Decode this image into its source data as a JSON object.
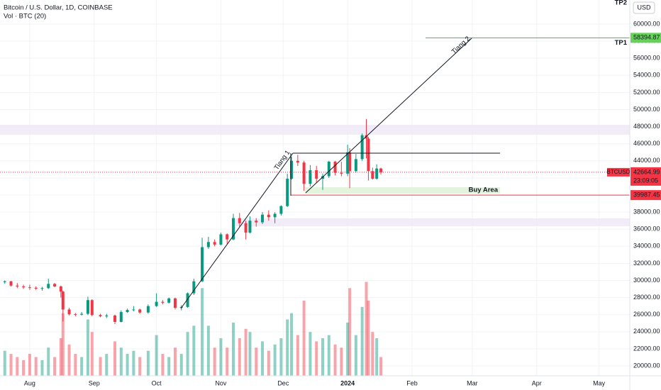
{
  "chart_data": {
    "type": "candlestick",
    "title": "Bitcoin / U.S. Dollar, 1D, COINBASE",
    "subtitle": "Vol · BTC (20)",
    "currency": "USD",
    "symbol": "BTCUSD",
    "last_price": {
      "value": 42664.99,
      "label": "42664.99"
    },
    "countdown": "23:09:05",
    "target": {
      "name": "TP1",
      "value": 58394.87,
      "label": "58394.87"
    },
    "target2": "TP2",
    "support": {
      "value": 39987.45,
      "label": "39987.45"
    },
    "buy_area": "Buy Area",
    "line_labels": [
      "Tiang 1",
      "Tiang 2"
    ],
    "up_color": "#089981",
    "down_color": "#f23645",
    "ylim": [
      18840,
      62820
    ],
    "yticks": [
      {
        "value": 20000,
        "label": "20000.00"
      },
      {
        "value": 22000,
        "label": "22000.00"
      },
      {
        "value": 24000,
        "label": "24000.00"
      },
      {
        "value": 26000,
        "label": "26000.00"
      },
      {
        "value": 28000,
        "label": "28000.00"
      },
      {
        "value": 30000,
        "label": "30000.00"
      },
      {
        "value": 32000,
        "label": "32000.00"
      },
      {
        "value": 34000,
        "label": "34000.00"
      },
      {
        "value": 36000,
        "label": "36000.00"
      },
      {
        "value": 38000,
        "label": "38000.00"
      },
      {
        "value": 40000,
        "label": "40000.00"
      },
      {
        "value": 42000,
        "label": "42000.00"
      },
      {
        "value": 44000,
        "label": "44000.00"
      },
      {
        "value": 46000,
        "label": "46000.00"
      },
      {
        "value": 48000,
        "label": "48000.00"
      },
      {
        "value": 50000,
        "label": "50000.00"
      },
      {
        "value": 52000,
        "label": "52000.00"
      },
      {
        "value": 54000,
        "label": "54000.00"
      },
      {
        "value": 56000,
        "label": "56000.00"
      },
      {
        "value": 58000,
        "label": "58000.00"
      },
      {
        "value": 60000,
        "label": "60000.00"
      }
    ],
    "y2lim": [
      0,
      120000
    ],
    "xlim": [
      -14.3,
      288.8
    ],
    "xticks": [
      {
        "value": 0,
        "label": "Aug"
      },
      {
        "value": 31,
        "label": "Sep"
      },
      {
        "value": 61,
        "label": "Oct"
      },
      {
        "value": 92,
        "label": "Nov"
      },
      {
        "value": 122,
        "label": "Dec"
      },
      {
        "value": 153,
        "label": "2024"
      },
      {
        "value": 184,
        "label": "Feb"
      },
      {
        "value": 213,
        "label": "Mar"
      },
      {
        "value": 244,
        "label": "Apr"
      },
      {
        "value": 274,
        "label": "May"
      }
    ],
    "grid": true,
    "candles": {
      "x": [
        -12,
        -9,
        -6,
        -3,
        0,
        3,
        6,
        9,
        12,
        15,
        16,
        19,
        22,
        25,
        28,
        30,
        34,
        37,
        41,
        44,
        47,
        50,
        53,
        57,
        61,
        64,
        67,
        70,
        73,
        76,
        79,
        83,
        86,
        89,
        92,
        95,
        98,
        101,
        104,
        106,
        109,
        112,
        115,
        118,
        121,
        124,
        126,
        129,
        132,
        135,
        138,
        141,
        144,
        147,
        150,
        153,
        154,
        157,
        160,
        162,
        163,
        165,
        167,
        169
      ],
      "open": [
        29800,
        29900,
        29400,
        29300,
        29200,
        29150,
        29050,
        29100,
        29600,
        29300,
        28700,
        26600,
        26050,
        26000,
        26100,
        27700,
        25950,
        25800,
        25900,
        25150,
        26300,
        26550,
        26600,
        26250,
        27000,
        27500,
        27400,
        27900,
        26800,
        26900,
        28500,
        29900,
        33900,
        34500,
        34200,
        35400,
        34800,
        37300,
        36700,
        35600,
        37000,
        36800,
        37700,
        37400,
        37800,
        38700,
        41900,
        44000,
        43800,
        41300,
        42900,
        41900,
        42200,
        43900,
        42600,
        42500,
        45000,
        42800,
        44200,
        47000,
        46600,
        42800,
        41900,
        43100
      ],
      "high": [
        30000,
        29950,
        29700,
        29500,
        29500,
        29300,
        29250,
        30200,
        29700,
        29400,
        28800,
        26800,
        26200,
        26300,
        28100,
        27800,
        26100,
        26100,
        26000,
        26500,
        26700,
        27000,
        26700,
        27200,
        28500,
        27700,
        28000,
        28000,
        27100,
        28600,
        30200,
        35000,
        35100,
        34800,
        35600,
        35500,
        37800,
        37900,
        37000,
        37500,
        37300,
        38000,
        38200,
        38000,
        38800,
        42500,
        44500,
        44700,
        44000,
        43500,
        43400,
        42500,
        44000,
        44000,
        43900,
        45900,
        45500,
        44800,
        47200,
        48900,
        46800,
        43200,
        43600,
        43200
      ],
      "low": [
        29600,
        29300,
        29100,
        29000,
        28900,
        28900,
        28800,
        29000,
        29200,
        28000,
        25200,
        25900,
        25800,
        25900,
        25950,
        25800,
        25700,
        25600,
        24900,
        25100,
        26200,
        26400,
        26100,
        26100,
        26900,
        27200,
        27300,
        26600,
        26500,
        26800,
        28300,
        29800,
        33700,
        34000,
        34100,
        34300,
        34700,
        36300,
        34800,
        35500,
        36300,
        36600,
        37000,
        36700,
        37600,
        38600,
        41800,
        43400,
        40500,
        41000,
        41400,
        40600,
        42000,
        42300,
        42200,
        42200,
        40800,
        42600,
        44000,
        44300,
        41700,
        41800,
        41800,
        42400
      ],
      "close": [
        29900,
        29400,
        29300,
        29200,
        29150,
        29050,
        29100,
        29600,
        29300,
        28700,
        26600,
        26050,
        26000,
        26100,
        27700,
        25950,
        25800,
        25900,
        25150,
        26300,
        26550,
        26600,
        26250,
        27000,
        27500,
        27400,
        27900,
        26800,
        26900,
        28500,
        29900,
        33900,
        34500,
        34200,
        35400,
        34800,
        37300,
        36700,
        35600,
        37000,
        36800,
        37700,
        37400,
        37800,
        38700,
        41900,
        44000,
        43800,
        41300,
        42900,
        41900,
        42200,
        43900,
        42600,
        42500,
        45000,
        42800,
        44200,
        47000,
        46600,
        42800,
        41900,
        43100,
        42665
      ],
      "volume": [
        8000,
        7000,
        6000,
        5000,
        7000,
        6000,
        5000,
        9000,
        6000,
        12000,
        20000,
        10000,
        7000,
        6000,
        18000,
        14000,
        6000,
        7000,
        11000,
        9000,
        7000,
        8000,
        6000,
        8000,
        13000,
        7000,
        6000,
        9000,
        7000,
        14000,
        16000,
        28000,
        16000,
        9000,
        12000,
        9000,
        17000,
        12000,
        15000,
        14000,
        9000,
        11000,
        8000,
        10000,
        12000,
        18000,
        20000,
        13000,
        24000,
        14000,
        11000,
        12000,
        13000,
        10000,
        9000,
        17000,
        28000,
        13000,
        22000,
        30000,
        24000,
        14000,
        12000,
        6000
      ]
    }
  }
}
